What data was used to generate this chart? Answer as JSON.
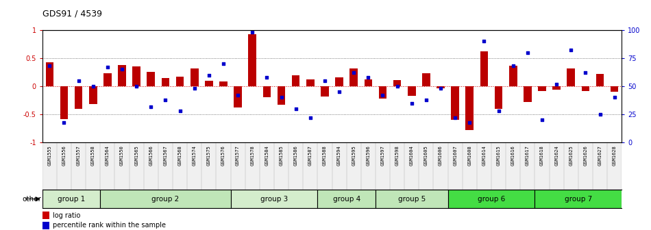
{
  "title": "GDS91 / 4539",
  "samples": [
    "GSM1555",
    "GSM1556",
    "GSM1557",
    "GSM1558",
    "GSM1564",
    "GSM1550",
    "GSM1565",
    "GSM1566",
    "GSM1567",
    "GSM1568",
    "GSM1574",
    "GSM1575",
    "GSM1576",
    "GSM1577",
    "GSM1578",
    "GSM1584",
    "GSM1585",
    "GSM1586",
    "GSM1587",
    "GSM1588",
    "GSM1594",
    "GSM1595",
    "GSM1596",
    "GSM1597",
    "GSM1598",
    "GSM1604",
    "GSM1605",
    "GSM1606",
    "GSM1607",
    "GSM1608",
    "GSM1614",
    "GSM1615",
    "GSM1616",
    "GSM1617",
    "GSM1618",
    "GSM1624",
    "GSM1625",
    "GSM1626",
    "GSM1627",
    "GSM1628"
  ],
  "log_ratio": [
    0.42,
    -0.58,
    -0.4,
    -0.32,
    0.23,
    0.38,
    0.35,
    0.26,
    0.14,
    0.17,
    0.32,
    0.1,
    0.08,
    -0.38,
    0.92,
    -0.2,
    -0.33,
    0.2,
    0.12,
    -0.18,
    0.16,
    0.32,
    0.12,
    -0.22,
    0.11,
    -0.17,
    0.23,
    -0.04,
    -0.6,
    -0.78,
    0.62,
    -0.4,
    0.37,
    -0.28,
    -0.08,
    -0.06,
    0.32,
    -0.08,
    0.22,
    -0.1
  ],
  "percentile": [
    68,
    18,
    55,
    50,
    67,
    65,
    50,
    32,
    38,
    28,
    48,
    60,
    70,
    42,
    98,
    58,
    40,
    30,
    22,
    55,
    45,
    62,
    58,
    42,
    50,
    35,
    38,
    48,
    22,
    18,
    90,
    28,
    68,
    80,
    20,
    52,
    82,
    62,
    25,
    40
  ],
  "groups": [
    {
      "name": "group 1",
      "start": 0,
      "end": 4,
      "color": "#d4edcc"
    },
    {
      "name": "group 2",
      "start": 4,
      "end": 13,
      "color": "#c0e6b8"
    },
    {
      "name": "group 3",
      "start": 13,
      "end": 19,
      "color": "#d4edcc"
    },
    {
      "name": "group 4",
      "start": 19,
      "end": 23,
      "color": "#c0e6b8"
    },
    {
      "name": "group 5",
      "start": 23,
      "end": 28,
      "color": "#c0e6b8"
    },
    {
      "name": "group 6",
      "start": 28,
      "end": 34,
      "color": "#44dd44"
    },
    {
      "name": "group 7",
      "start": 34,
      "end": 40,
      "color": "#44dd44"
    }
  ],
  "bar_color": "#bb0000",
  "dot_color": "#0000cc",
  "ylim": [
    -1.0,
    1.0
  ],
  "bg_color": "#ffffff",
  "bar_width": 0.55,
  "fig_width": 9.5,
  "fig_height": 3.36,
  "dpi": 100
}
